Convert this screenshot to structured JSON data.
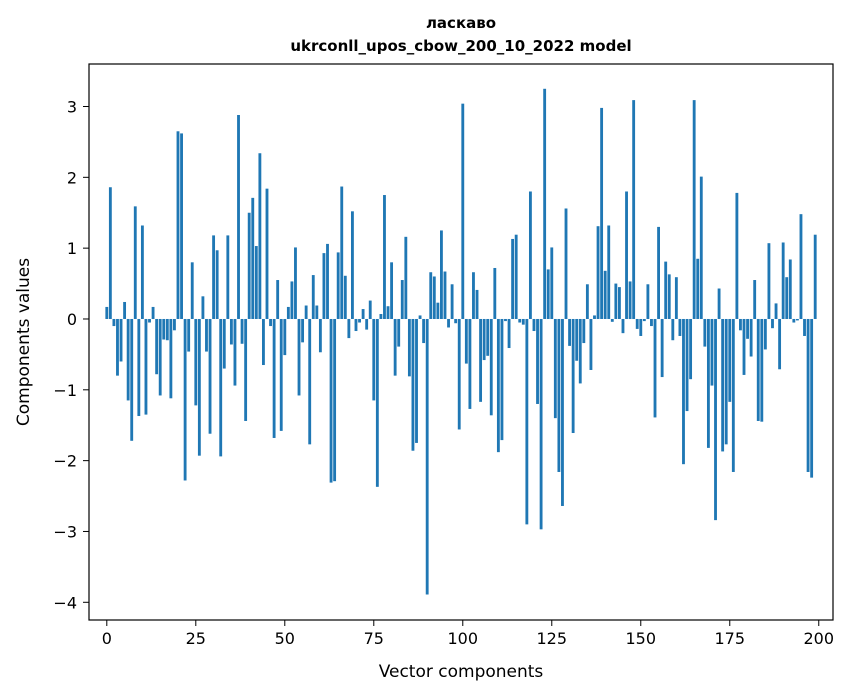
{
  "chart_data": {
    "type": "bar",
    "title": "ласкаво",
    "subtitle": "ukrconll_upos_cbow_200_10_2022 model",
    "xlabel": "Vector components",
    "ylabel": "Components values",
    "xlim": [
      -5,
      204
    ],
    "ylim": [
      -4.25,
      3.6
    ],
    "xticks": [
      0,
      25,
      50,
      75,
      100,
      125,
      150,
      175,
      200
    ],
    "xtick_labels": [
      "0",
      "25",
      "50",
      "75",
      "100",
      "125",
      "150",
      "175",
      "200"
    ],
    "yticks": [
      -4,
      -3,
      -2,
      -1,
      0,
      1,
      2,
      3
    ],
    "ytick_labels": [
      "−4",
      "−3",
      "−2",
      "−1",
      "0",
      "1",
      "2",
      "3"
    ],
    "bar_color": "#1f77b4",
    "grid": false,
    "x": [
      0,
      1,
      2,
      3,
      4,
      5,
      6,
      7,
      8,
      9,
      10,
      11,
      12,
      13,
      14,
      15,
      16,
      17,
      18,
      19,
      20,
      21,
      22,
      23,
      24,
      25,
      26,
      27,
      28,
      29,
      30,
      31,
      32,
      33,
      34,
      35,
      36,
      37,
      38,
      39,
      40,
      41,
      42,
      43,
      44,
      45,
      46,
      47,
      48,
      49,
      50,
      51,
      52,
      53,
      54,
      55,
      56,
      57,
      58,
      59,
      60,
      61,
      62,
      63,
      64,
      65,
      66,
      67,
      68,
      69,
      70,
      71,
      72,
      73,
      74,
      75,
      76,
      77,
      78,
      79,
      80,
      81,
      82,
      83,
      84,
      85,
      86,
      87,
      88,
      89,
      90,
      91,
      92,
      93,
      94,
      95,
      96,
      97,
      98,
      99,
      100,
      101,
      102,
      103,
      104,
      105,
      106,
      107,
      108,
      109,
      110,
      111,
      112,
      113,
      114,
      115,
      116,
      117,
      118,
      119,
      120,
      121,
      122,
      123,
      124,
      125,
      126,
      127,
      128,
      129,
      130,
      131,
      132,
      133,
      134,
      135,
      136,
      137,
      138,
      139,
      140,
      141,
      142,
      143,
      144,
      145,
      146,
      147,
      148,
      149,
      150,
      151,
      152,
      153,
      154,
      155,
      156,
      157,
      158,
      159,
      160,
      161,
      162,
      163,
      164,
      165,
      166,
      167,
      168,
      169,
      170,
      171,
      172,
      173,
      174,
      175,
      176,
      177,
      178,
      179,
      180,
      181,
      182,
      183,
      184,
      185,
      186,
      187,
      188,
      189,
      190,
      191,
      192,
      193,
      194,
      195,
      196,
      197,
      198,
      199
    ],
    "values": [
      0.17,
      1.86,
      -0.1,
      -0.8,
      -0.6,
      0.24,
      -1.15,
      -1.72,
      1.59,
      -1.37,
      1.32,
      -1.35,
      -0.05,
      0.17,
      -0.78,
      -1.08,
      -0.29,
      -0.3,
      -1.12,
      -0.16,
      2.65,
      2.62,
      -2.28,
      -0.46,
      0.8,
      -1.22,
      -1.93,
      0.32,
      -0.46,
      -1.62,
      1.18,
      0.97,
      -1.94,
      -0.7,
      1.18,
      -0.36,
      -0.94,
      2.88,
      -0.35,
      -1.44,
      1.5,
      1.71,
      1.03,
      2.34,
      -0.65,
      1.84,
      -0.1,
      -1.68,
      0.55,
      -1.58,
      -0.51,
      0.17,
      0.53,
      1.01,
      -1.08,
      -0.33,
      0.19,
      -1.77,
      0.62,
      0.19,
      -0.47,
      0.93,
      1.06,
      -2.31,
      -2.29,
      0.94,
      1.87,
      0.61,
      -0.27,
      1.52,
      -0.17,
      -0.05,
      0.14,
      -0.15,
      0.26,
      -1.15,
      -2.37,
      0.07,
      1.75,
      0.18,
      0.8,
      -0.8,
      -0.39,
      0.55,
      1.16,
      -0.81,
      -1.86,
      -1.75,
      0.05,
      -0.34,
      -3.89,
      0.66,
      0.6,
      0.23,
      1.25,
      0.67,
      -0.12,
      0.49,
      -0.06,
      -1.56,
      3.04,
      -0.63,
      -1.27,
      0.66,
      0.41,
      -1.17,
      -0.58,
      -0.52,
      -1.36,
      0.72,
      -1.88,
      -1.71,
      -0.03,
      -0.41,
      1.13,
      1.19,
      -0.05,
      -0.08,
      -2.9,
      1.8,
      -0.17,
      -1.2,
      -2.97,
      3.25,
      0.7,
      1.01,
      -1.4,
      -2.16,
      -2.64,
      1.56,
      -0.38,
      -1.61,
      -0.59,
      -0.91,
      -0.34,
      0.49,
      -0.72,
      0.05,
      1.31,
      2.98,
      0.68,
      1.32,
      -0.04,
      0.5,
      0.45,
      -0.2,
      1.8,
      0.53,
      3.09,
      -0.14,
      -0.24,
      -0.03,
      0.49,
      -0.1,
      -1.39,
      1.3,
      -0.82,
      0.81,
      0.63,
      -0.3,
      0.59,
      -0.24,
      -2.05,
      -1.3,
      -0.85,
      3.09,
      0.85,
      2.01,
      -0.39,
      -1.82,
      -0.94,
      -2.84,
      0.43,
      -1.87,
      -1.77,
      -1.17,
      -2.16,
      1.78,
      -0.16,
      -0.79,
      -0.28,
      -0.53,
      0.55,
      -1.44,
      -1.45,
      -0.43,
      1.07,
      -0.13,
      0.22,
      -0.71,
      1.08,
      0.59,
      0.84,
      -0.05,
      -0.02,
      1.48,
      -0.24,
      -2.16,
      -2.24,
      1.19
    ]
  }
}
